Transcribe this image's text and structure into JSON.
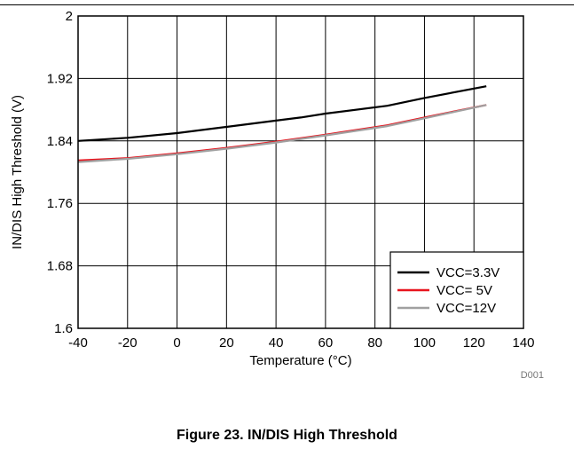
{
  "caption": "Figure 23. IN/DIS High Threshold",
  "figure_id": "D001",
  "chart_data": {
    "type": "line",
    "title": "",
    "xlabel": "Temperature (°C)",
    "ylabel": "IN/DIS High Threshold (V)",
    "xlim": [
      -40,
      140
    ],
    "ylim": [
      1.6,
      2.0
    ],
    "x_ticks": [
      -40,
      -20,
      0,
      20,
      40,
      60,
      80,
      100,
      120,
      140
    ],
    "x_tick_labels": [
      "-40",
      "-20",
      "0",
      "20",
      "40",
      "60",
      "80",
      "100",
      "120",
      "140"
    ],
    "y_ticks": [
      1.6,
      1.68,
      1.76,
      1.84,
      1.92,
      2.0
    ],
    "y_tick_labels": [
      "1.6",
      "1.68",
      "1.76",
      "1.84",
      "1.92",
      "2"
    ],
    "grid": true,
    "legend_position": "bottom-right",
    "series": [
      {
        "name": "VCC=3.3V",
        "color": "#000000",
        "x": [
          -40,
          -20,
          0,
          20,
          40,
          50,
          60,
          85,
          100,
          125
        ],
        "y": [
          1.84,
          1.844,
          1.85,
          1.858,
          1.866,
          1.87,
          1.875,
          1.885,
          1.895,
          1.91
        ]
      },
      {
        "name": "VCC= 5V",
        "color": "#e8141e",
        "x": [
          -40,
          -20,
          0,
          20,
          40,
          60,
          85,
          100,
          125
        ],
        "y": [
          1.815,
          1.818,
          1.824,
          1.831,
          1.839,
          1.848,
          1.86,
          1.87,
          1.886
        ]
      },
      {
        "name": "VCC=12V",
        "color": "#a0a0a0",
        "x": [
          -40,
          -20,
          0,
          20,
          40,
          60,
          85,
          100,
          125
        ],
        "y": [
          1.813,
          1.817,
          1.823,
          1.83,
          1.838,
          1.847,
          1.859,
          1.869,
          1.886
        ]
      }
    ]
  }
}
